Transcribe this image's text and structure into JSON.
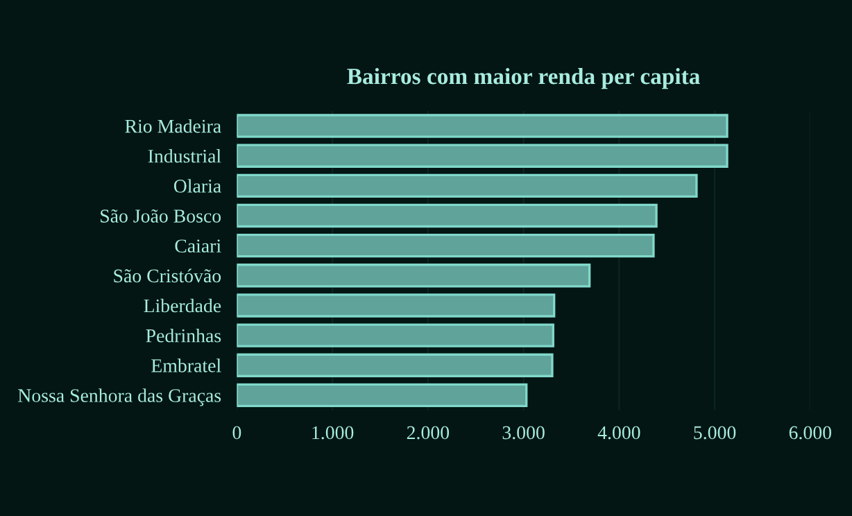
{
  "chart_data": {
    "type": "bar",
    "orientation": "horizontal",
    "title": "Bairros com maior renda per capita",
    "categories": [
      "Rio Madeira",
      "Industrial",
      "Olaria",
      "São João Bosco",
      "Caiari",
      "São Cristóvão",
      "Liberdade",
      "Pedrinhas",
      "Embratel",
      "Nossa Senhora das Graças"
    ],
    "values": [
      5130,
      5130,
      4810,
      4390,
      4360,
      3690,
      3320,
      3310,
      3300,
      3030
    ],
    "color": "#5fa39a",
    "xlim": [
      0,
      6000
    ],
    "xticks": [
      {
        "value": 0,
        "label": "0"
      },
      {
        "value": 1000,
        "label": "1.000"
      },
      {
        "value": 2000,
        "label": "2.000"
      },
      {
        "value": 3000,
        "label": "3.000"
      },
      {
        "value": 4000,
        "label": "4.000"
      },
      {
        "value": 5000,
        "label": "5.000"
      },
      {
        "value": 6000,
        "label": "6.000"
      }
    ],
    "grid": "x"
  }
}
